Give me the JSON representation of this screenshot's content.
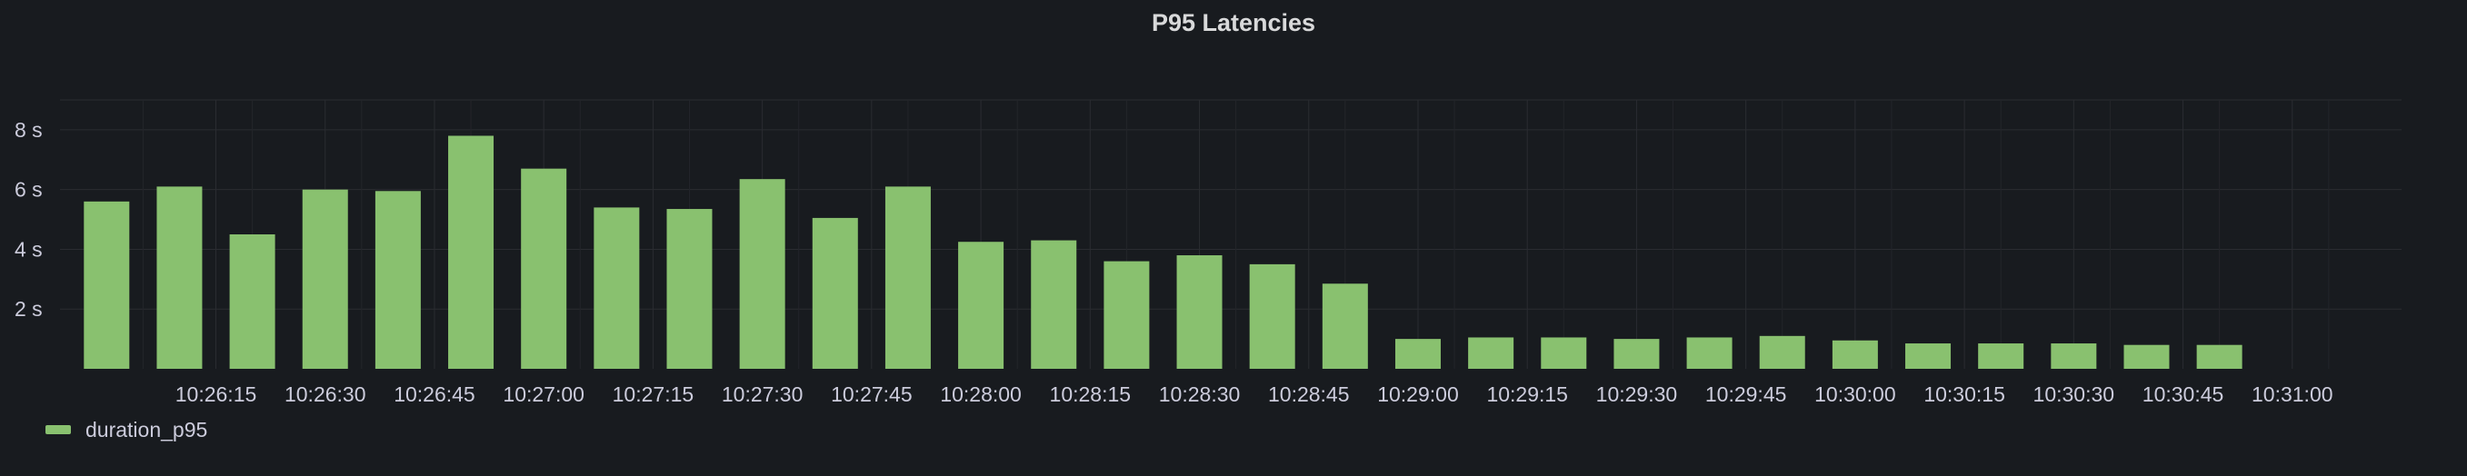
{
  "panel": {
    "title": "P95 Latencies"
  },
  "chart_data": {
    "type": "bar",
    "title": "P95 Latencies",
    "xlabel": "",
    "ylabel": "",
    "y_unit": "s",
    "ylim": [
      0,
      9.0
    ],
    "y_ticks": [
      {
        "value": 2,
        "label": "2 s"
      },
      {
        "value": 4,
        "label": "4 s"
      },
      {
        "value": 6,
        "label": "6 s"
      },
      {
        "value": 8,
        "label": "8 s"
      }
    ],
    "x_tick_labels": [
      "10:26:15",
      "10:26:30",
      "10:26:45",
      "10:27:00",
      "10:27:15",
      "10:27:30",
      "10:27:45",
      "10:28:00",
      "10:28:15",
      "10:28:30",
      "10:28:45",
      "10:29:00",
      "10:29:15",
      "10:29:30",
      "10:29:45",
      "10:30:00",
      "10:30:15",
      "10:30:30",
      "10:30:45",
      "10:31:00"
    ],
    "grid": true,
    "legend_position": "bottom-left",
    "series": [
      {
        "name": "duration_p95",
        "color": "#89c16f",
        "points": [
          {
            "x": "10:26:00",
            "y": 5.6
          },
          {
            "x": "10:26:10",
            "y": 6.1
          },
          {
            "x": "10:26:20",
            "y": 4.5
          },
          {
            "x": "10:26:30",
            "y": 6.0
          },
          {
            "x": "10:26:40",
            "y": 5.95
          },
          {
            "x": "10:26:50",
            "y": 7.8
          },
          {
            "x": "10:27:00",
            "y": 6.7
          },
          {
            "x": "10:27:10",
            "y": 5.4
          },
          {
            "x": "10:27:20",
            "y": 5.35
          },
          {
            "x": "10:27:30",
            "y": 6.35
          },
          {
            "x": "10:27:40",
            "y": 5.05
          },
          {
            "x": "10:27:50",
            "y": 6.1
          },
          {
            "x": "10:28:00",
            "y": 4.25
          },
          {
            "x": "10:28:10",
            "y": 4.3
          },
          {
            "x": "10:28:20",
            "y": 3.6
          },
          {
            "x": "10:28:30",
            "y": 3.8
          },
          {
            "x": "10:28:40",
            "y": 3.5
          },
          {
            "x": "10:28:50",
            "y": 2.85
          },
          {
            "x": "10:29:00",
            "y": 1.0
          },
          {
            "x": "10:29:10",
            "y": 1.05
          },
          {
            "x": "10:29:20",
            "y": 1.05
          },
          {
            "x": "10:29:30",
            "y": 1.0
          },
          {
            "x": "10:29:40",
            "y": 1.05
          },
          {
            "x": "10:29:50",
            "y": 1.1
          },
          {
            "x": "10:30:00",
            "y": 0.95
          },
          {
            "x": "10:30:10",
            "y": 0.85
          },
          {
            "x": "10:30:20",
            "y": 0.85
          },
          {
            "x": "10:30:30",
            "y": 0.85
          },
          {
            "x": "10:30:40",
            "y": 0.8
          },
          {
            "x": "10:30:50",
            "y": 0.8
          }
        ]
      }
    ]
  }
}
